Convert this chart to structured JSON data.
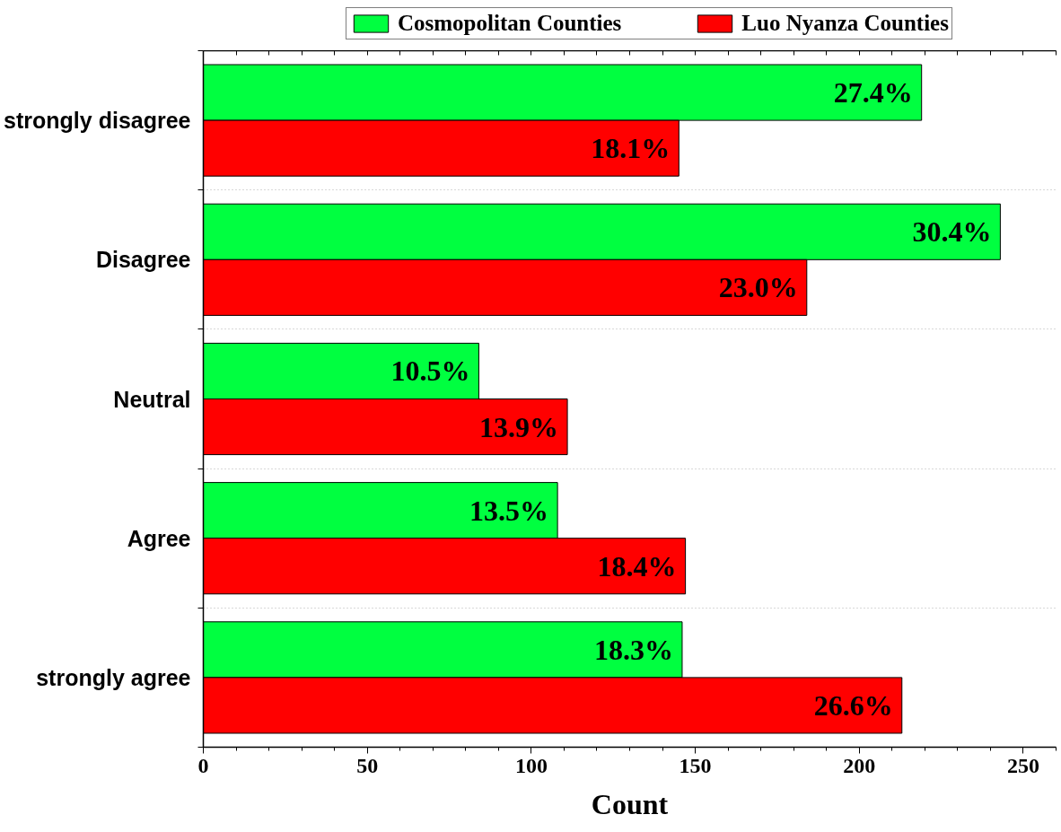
{
  "chart_data": {
    "type": "bar",
    "orientation": "horizontal",
    "categories": [
      "strongly disagree",
      "Disagree",
      "Neutral",
      "Agree",
      "strongly agree"
    ],
    "series": [
      {
        "name": "Cosmopolitan Counties",
        "color": "#00ff40",
        "values": [
          219,
          243,
          84,
          108,
          146
        ]
      },
      {
        "name": "Luo Nyanza Counties",
        "color": "#ff0000",
        "values": [
          145,
          184,
          111,
          147,
          213
        ]
      }
    ],
    "annotations": [
      {
        "text": "27.4%",
        "x": 219,
        "y": "strongly disagree"
      },
      {
        "text": "18.1%",
        "x": 145,
        "y": "strongly disagree"
      },
      {
        "text": "30.4%",
        "x": 243,
        "y": "Disagree"
      },
      {
        "text": "23.0%",
        "x": 184,
        "y": "Disagree"
      },
      {
        "text": "10.5%",
        "x": 84,
        "y": "Neutral"
      },
      {
        "text": "13.9%",
        "x": 111,
        "y": "Neutral"
      },
      {
        "text": "13.5%",
        "x": 108,
        "y": "Agree"
      },
      {
        "text": "18.4%",
        "x": 147,
        "y": "Agree"
      },
      {
        "text": "18.3%",
        "x": 146,
        "y": "strongly agree"
      },
      {
        "text": "26.6%",
        "x": 213,
        "y": "strongly agree"
      }
    ],
    "xlabel": "Count",
    "xlim": [
      0,
      260
    ],
    "xticks": [
      0,
      50,
      100,
      150,
      200,
      250
    ],
    "grid": "y",
    "legend": "top"
  }
}
